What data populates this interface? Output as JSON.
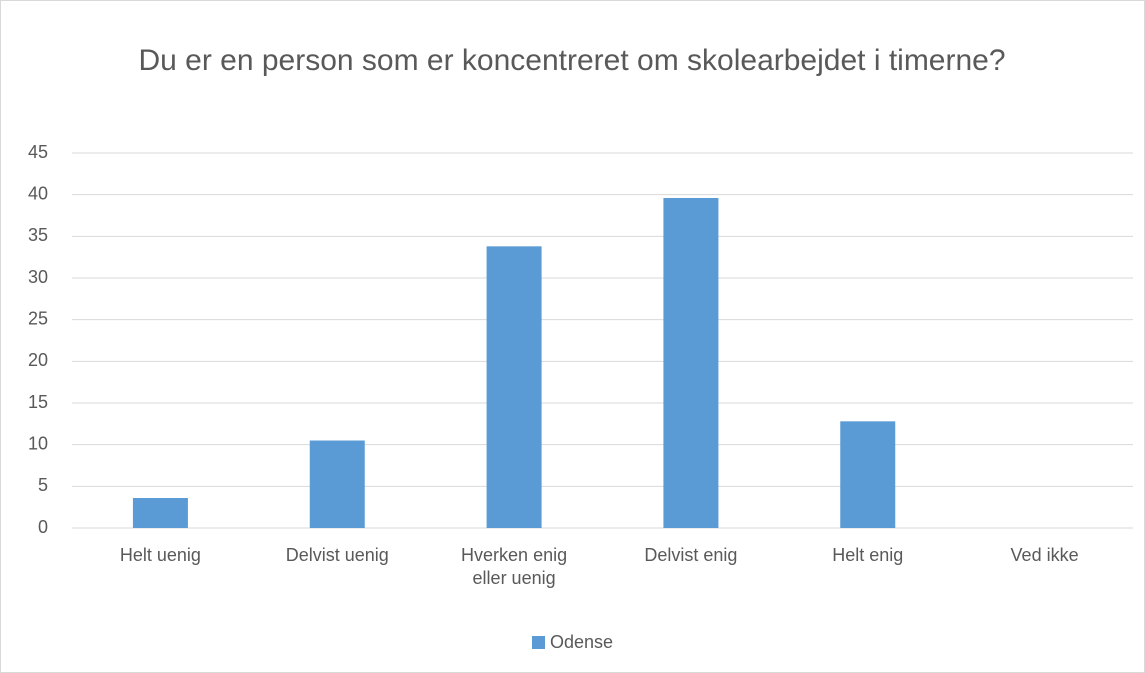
{
  "chart_data": {
    "type": "bar",
    "title": "Du er en person som er koncentreret om skolearbejdet i timerne?",
    "categories": [
      "Helt uenig",
      "Delvist uenig",
      "Hverken enig eller uenig",
      "Delvist enig",
      "Helt enig",
      "Ved ikke"
    ],
    "series": [
      {
        "name": "Odense",
        "color": "#5b9bd5",
        "values": [
          3.6,
          10.5,
          33.8,
          39.6,
          12.8,
          0
        ]
      }
    ],
    "ylim": [
      0,
      45
    ],
    "yticks": [
      0,
      5,
      10,
      15,
      20,
      25,
      30,
      35,
      40,
      45
    ],
    "grid": true,
    "legend": "bottom"
  }
}
